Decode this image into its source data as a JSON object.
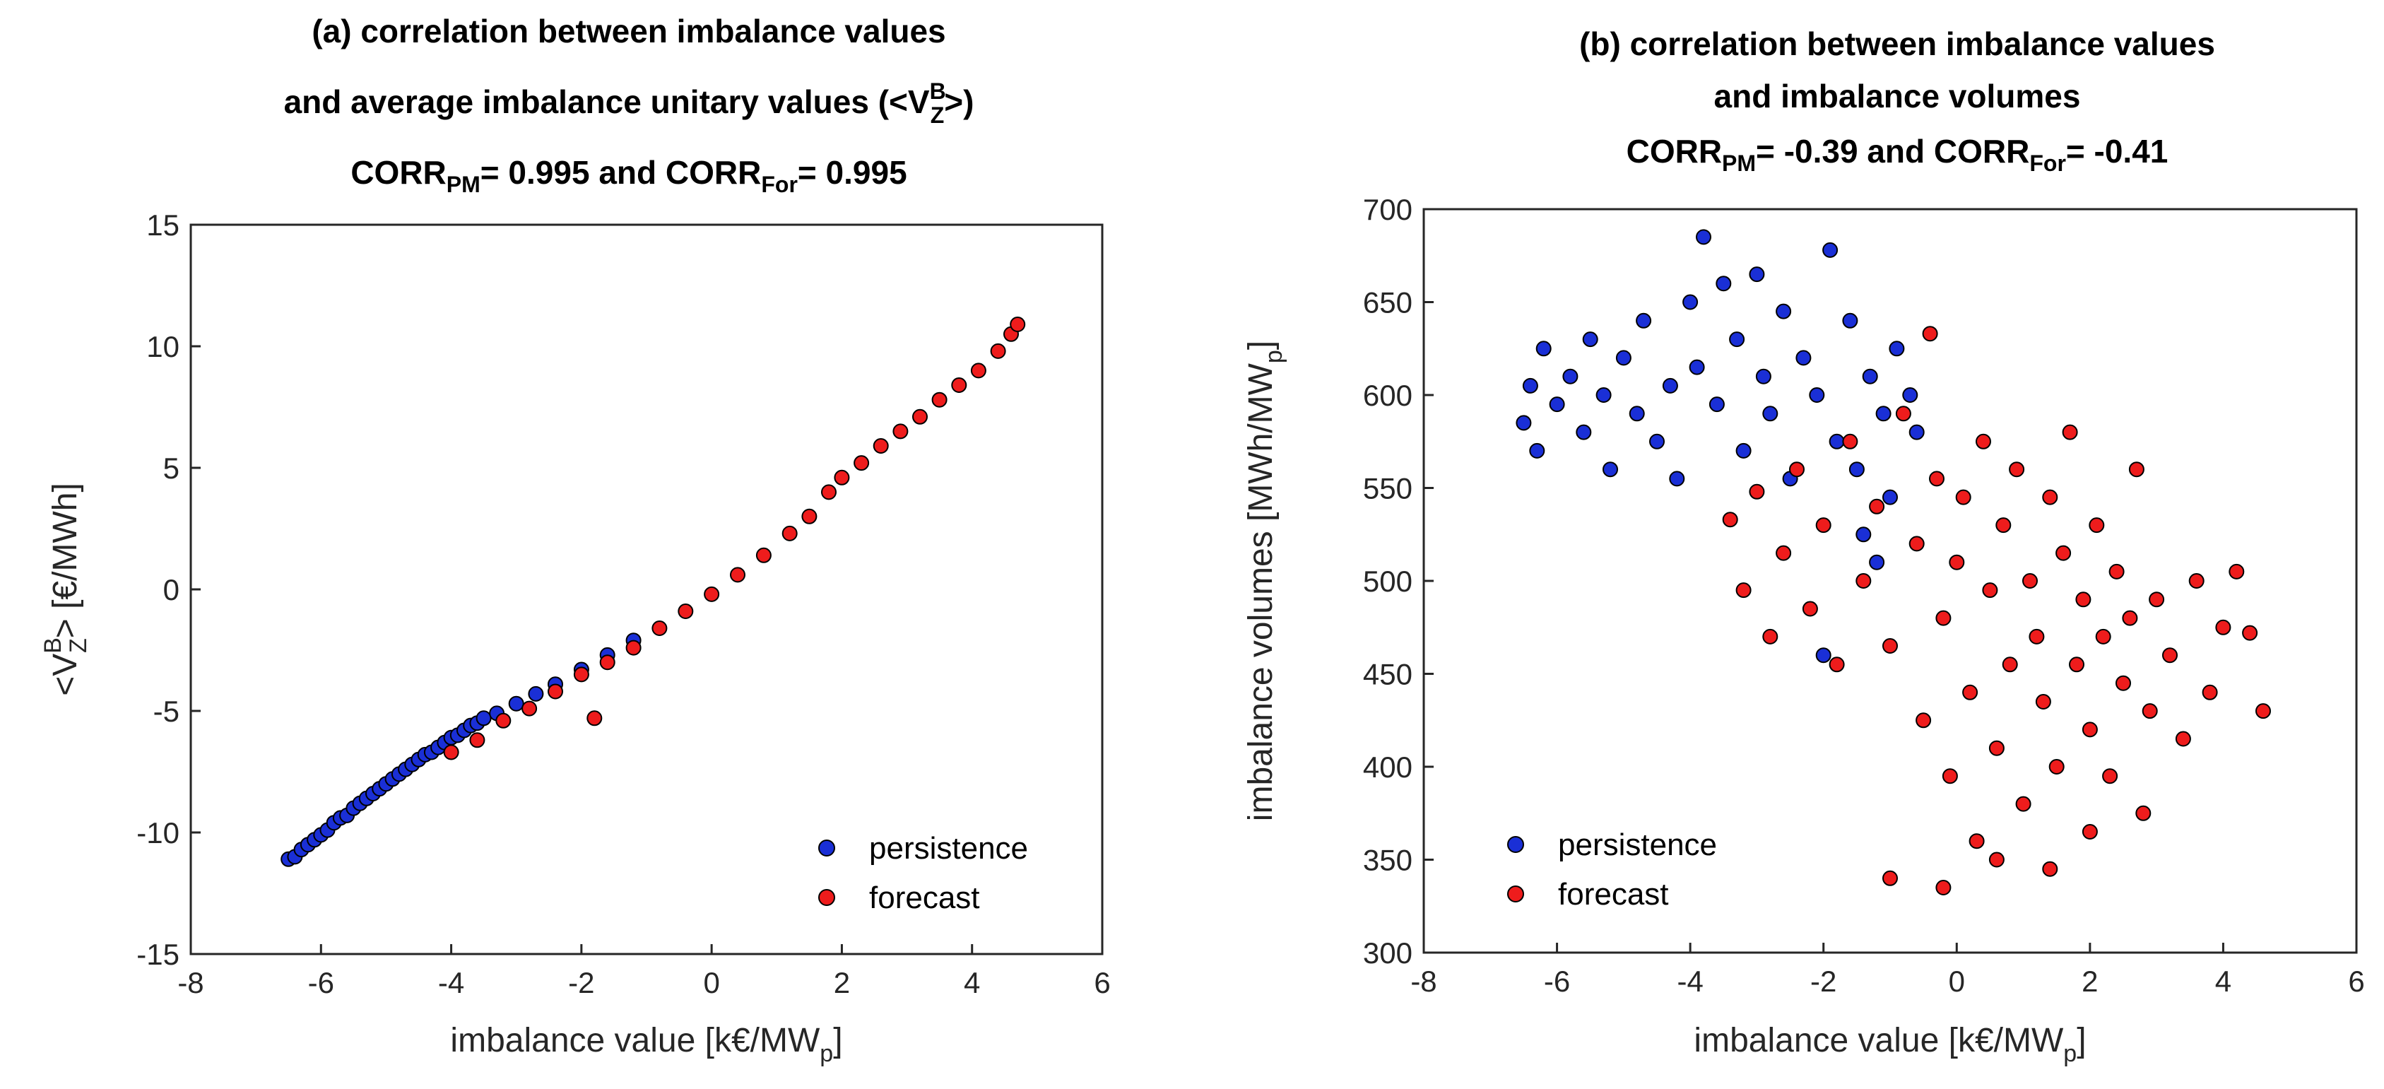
{
  "charts": [
    {
      "id": "a",
      "type": "scatter",
      "title_line1": "(a) correlation between imbalance values",
      "title_line2": "and average imbalance unitary values (<V",
      "title_line2_sup": "B",
      "title_line2_sub": "Z",
      "title_line2_tail": ">)",
      "title_line3": {
        "corr1_label": "CORR",
        "corr1_sub": "PM",
        "corr1_value": "= 0.995 and ",
        "corr2_label": "CORR",
        "corr2_sub": "For",
        "corr2_value": "= 0.995"
      },
      "xlabel_main": "imbalance value  [k€/MW",
      "xlabel_sub": "p",
      "xlabel_tail": "]",
      "ylabel_pre": "<V",
      "ylabel_sup": "B",
      "ylabel_sub": "Z",
      "ylabel_tail": "> [€/MWh]",
      "xlim": [
        -8,
        6
      ],
      "ylim": [
        -15,
        15
      ],
      "xticks": [
        "-8",
        "-6",
        "-4",
        "-2",
        "0",
        "2",
        "4",
        "6"
      ],
      "yticks": [
        "-15",
        "-10",
        "-5",
        "0",
        "5",
        "10",
        "15"
      ],
      "legend": [
        "persistence",
        "forecast"
      ],
      "legend_position": "bottom-right"
    },
    {
      "id": "b",
      "type": "scatter",
      "title_line1": "(b) correlation between imbalance values",
      "title_line2": "and imbalance volumes",
      "title_line3": {
        "corr1_label": "CORR",
        "corr1_sub": "PM",
        "corr1_value": "= -0.39 and ",
        "corr2_label": "CORR",
        "corr2_sub": "For",
        "corr2_value": "= -0.41"
      },
      "xlabel_main": "imbalance value  [k€/MW",
      "xlabel_sub": "p",
      "xlabel_tail": "]",
      "ylabel_main": "imbalance volumes [MWh/MW",
      "ylabel_sub": "p",
      "ylabel_tail": "]",
      "xlim": [
        -8,
        6
      ],
      "ylim": [
        300,
        700
      ],
      "xticks": [
        "-8",
        "-6",
        "-4",
        "-2",
        "0",
        "2",
        "4",
        "6"
      ],
      "yticks": [
        "300",
        "350",
        "400",
        "450",
        "500",
        "550",
        "600",
        "650",
        "700"
      ],
      "legend": [
        "persistence",
        "forecast"
      ],
      "legend_position": "bottom-left"
    }
  ],
  "colors": {
    "persistence": "#1a2fd6",
    "forecast": "#ee1c1c",
    "marker_edge": "#000000"
  },
  "chart_data": [
    {
      "type": "scatter",
      "title": "(a) correlation between imbalance values and average imbalance unitary values (<V^B_Z>)",
      "xlabel": "imbalance value [k€/MW_p]",
      "ylabel": "<V^B_Z> [€/MWh]",
      "xlim": [
        -8,
        6
      ],
      "ylim": [
        -15,
        15
      ],
      "series": [
        {
          "name": "persistence",
          "points": [
            [
              -6.5,
              -11.1
            ],
            [
              -6.4,
              -11.0
            ],
            [
              -6.3,
              -10.7
            ],
            [
              -6.2,
              -10.5
            ],
            [
              -6.1,
              -10.3
            ],
            [
              -6.0,
              -10.1
            ],
            [
              -5.9,
              -9.9
            ],
            [
              -5.8,
              -9.6
            ],
            [
              -5.7,
              -9.4
            ],
            [
              -5.6,
              -9.3
            ],
            [
              -5.5,
              -9.0
            ],
            [
              -5.4,
              -8.8
            ],
            [
              -5.3,
              -8.6
            ],
            [
              -5.2,
              -8.4
            ],
            [
              -5.1,
              -8.2
            ],
            [
              -5.0,
              -8.0
            ],
            [
              -4.9,
              -7.8
            ],
            [
              -4.8,
              -7.6
            ],
            [
              -4.7,
              -7.4
            ],
            [
              -4.6,
              -7.2
            ],
            [
              -4.5,
              -7.0
            ],
            [
              -4.4,
              -6.8
            ],
            [
              -4.3,
              -6.7
            ],
            [
              -4.2,
              -6.5
            ],
            [
              -4.1,
              -6.3
            ],
            [
              -4.0,
              -6.1
            ],
            [
              -3.9,
              -6.0
            ],
            [
              -3.8,
              -5.8
            ],
            [
              -3.7,
              -5.6
            ],
            [
              -3.6,
              -5.5
            ],
            [
              -3.5,
              -5.3
            ],
            [
              -3.3,
              -5.1
            ],
            [
              -3.0,
              -4.7
            ],
            [
              -2.7,
              -4.3
            ],
            [
              -2.4,
              -3.9
            ],
            [
              -2.0,
              -3.3
            ],
            [
              -1.6,
              -2.7
            ],
            [
              -1.2,
              -2.1
            ]
          ]
        },
        {
          "name": "forecast",
          "points": [
            [
              -4.0,
              -6.7
            ],
            [
              -3.6,
              -6.2
            ],
            [
              -3.2,
              -5.4
            ],
            [
              -2.8,
              -4.9
            ],
            [
              -2.4,
              -4.2
            ],
            [
              -2.0,
              -3.5
            ],
            [
              -1.8,
              -5.3
            ],
            [
              -1.6,
              -3.0
            ],
            [
              -1.2,
              -2.4
            ],
            [
              -0.8,
              -1.6
            ],
            [
              -0.4,
              -0.9
            ],
            [
              0.0,
              -0.2
            ],
            [
              0.4,
              0.6
            ],
            [
              0.8,
              1.4
            ],
            [
              1.2,
              2.3
            ],
            [
              1.5,
              3.0
            ],
            [
              1.8,
              4.0
            ],
            [
              2.0,
              4.6
            ],
            [
              2.3,
              5.2
            ],
            [
              2.6,
              5.9
            ],
            [
              2.9,
              6.5
            ],
            [
              3.2,
              7.1
            ],
            [
              3.5,
              7.8
            ],
            [
              3.8,
              8.4
            ],
            [
              4.1,
              9.0
            ],
            [
              4.4,
              9.8
            ],
            [
              4.6,
              10.5
            ],
            [
              4.7,
              10.9
            ]
          ]
        }
      ]
    },
    {
      "type": "scatter",
      "title": "(b) correlation between imbalance values and imbalance volumes",
      "xlabel": "imbalance value [k€/MW_p]",
      "ylabel": "imbalance volumes [MWh/MW_p]",
      "xlim": [
        -8,
        6
      ],
      "ylim": [
        300,
        700
      ],
      "series": [
        {
          "name": "persistence",
          "points": [
            [
              -6.5,
              585
            ],
            [
              -6.4,
              605
            ],
            [
              -6.3,
              570
            ],
            [
              -6.2,
              625
            ],
            [
              -6.0,
              595
            ],
            [
              -5.8,
              610
            ],
            [
              -5.6,
              580
            ],
            [
              -5.5,
              630
            ],
            [
              -5.3,
              600
            ],
            [
              -5.2,
              560
            ],
            [
              -5.0,
              620
            ],
            [
              -4.8,
              590
            ],
            [
              -4.7,
              640
            ],
            [
              -4.5,
              575
            ],
            [
              -4.3,
              605
            ],
            [
              -4.2,
              555
            ],
            [
              -4.0,
              650
            ],
            [
              -3.9,
              615
            ],
            [
              -3.8,
              685
            ],
            [
              -3.6,
              595
            ],
            [
              -3.5,
              660
            ],
            [
              -3.3,
              630
            ],
            [
              -3.2,
              570
            ],
            [
              -3.0,
              665
            ],
            [
              -2.9,
              610
            ],
            [
              -2.8,
              590
            ],
            [
              -2.6,
              645
            ],
            [
              -2.5,
              555
            ],
            [
              -2.3,
              620
            ],
            [
              -2.1,
              600
            ],
            [
              -1.9,
              678
            ],
            [
              -1.8,
              575
            ],
            [
              -1.6,
              640
            ],
            [
              -1.5,
              560
            ],
            [
              -1.3,
              610
            ],
            [
              -1.1,
              590
            ],
            [
              -1.0,
              545
            ],
            [
              -0.9,
              625
            ],
            [
              -0.7,
              600
            ],
            [
              -0.6,
              580
            ],
            [
              -1.4,
              525
            ],
            [
              -1.2,
              510
            ],
            [
              -2.0,
              460
            ]
          ]
        },
        {
          "name": "forecast",
          "points": [
            [
              -3.4,
              533
            ],
            [
              -3.2,
              495
            ],
            [
              -3.0,
              548
            ],
            [
              -2.8,
              470
            ],
            [
              -2.6,
              515
            ],
            [
              -2.4,
              560
            ],
            [
              -2.2,
              485
            ],
            [
              -2.0,
              530
            ],
            [
              -1.8,
              455
            ],
            [
              -1.6,
              575
            ],
            [
              -1.4,
              500
            ],
            [
              -1.2,
              540
            ],
            [
              -1.0,
              465
            ],
            [
              -0.8,
              590
            ],
            [
              -0.6,
              520
            ],
            [
              -0.5,
              425
            ],
            [
              -0.4,
              633
            ],
            [
              -0.3,
              555
            ],
            [
              -0.2,
              480
            ],
            [
              -0.1,
              395
            ],
            [
              0.0,
              510
            ],
            [
              0.1,
              545
            ],
            [
              0.2,
              440
            ],
            [
              0.3,
              360
            ],
            [
              0.4,
              575
            ],
            [
              0.5,
              495
            ],
            [
              0.6,
              410
            ],
            [
              0.7,
              530
            ],
            [
              0.8,
              455
            ],
            [
              0.9,
              560
            ],
            [
              1.0,
              380
            ],
            [
              1.1,
              500
            ],
            [
              1.2,
              470
            ],
            [
              1.3,
              435
            ],
            [
              1.4,
              545
            ],
            [
              1.5,
              400
            ],
            [
              1.6,
              515
            ],
            [
              1.7,
              580
            ],
            [
              1.8,
              455
            ],
            [
              1.9,
              490
            ],
            [
              2.0,
              420
            ],
            [
              2.1,
              530
            ],
            [
              2.2,
              470
            ],
            [
              2.3,
              395
            ],
            [
              2.4,
              505
            ],
            [
              2.5,
              445
            ],
            [
              2.6,
              480
            ],
            [
              2.7,
              560
            ],
            [
              2.8,
              375
            ],
            [
              2.9,
              430
            ],
            [
              3.0,
              490
            ],
            [
              3.2,
              460
            ],
            [
              3.4,
              415
            ],
            [
              3.6,
              500
            ],
            [
              3.8,
              440
            ],
            [
              4.0,
              475
            ],
            [
              4.2,
              505
            ],
            [
              4.4,
              472
            ],
            [
              4.6,
              430
            ],
            [
              -1.0,
              340
            ],
            [
              -0.2,
              335
            ],
            [
              0.6,
              350
            ],
            [
              1.4,
              345
            ],
            [
              2.0,
              365
            ]
          ]
        }
      ]
    }
  ]
}
